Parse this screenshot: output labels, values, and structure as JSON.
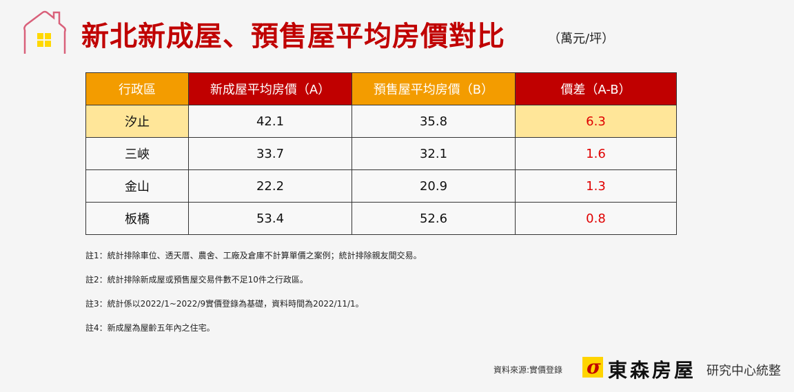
{
  "header": {
    "title": "新北新成屋、預售屋平均房價對比",
    "unit": "（萬元/坪）"
  },
  "table": {
    "headers": [
      "行政區",
      "新成屋平均房價（A）",
      "預售屋平均房價（B）",
      "價差（A-B）"
    ],
    "rows": [
      [
        "汐止",
        "42.1",
        "35.8",
        "6.3"
      ],
      [
        "三峽",
        "33.7",
        "32.1",
        "1.6"
      ],
      [
        "金山",
        "22.2",
        "20.9",
        "1.3"
      ],
      [
        "板橋",
        "53.4",
        "52.6",
        "0.8"
      ]
    ]
  },
  "notes": [
    "註1：統計排除車位、透天厝、農舍、工廠及倉庫不計算單價之案例；統計排除親友間交易。",
    "註2：統計排除新成屋或預售屋交易件數不足10件之行政區。",
    "註3：統計係以2022/1~2022/9實價登錄為基礎，資料時間為2022/11/1。",
    "註4：新成屋為屋齡五年內之住宅。"
  ],
  "footer": {
    "source": "資料來源:實價登錄",
    "brand": "東森房屋",
    "center": "研究中心統整"
  },
  "colors": {
    "title": "#c00000",
    "header_orange": "#f39c00",
    "header_red": "#c00000",
    "highlight": "#ffe699",
    "diff": "#e00000"
  }
}
